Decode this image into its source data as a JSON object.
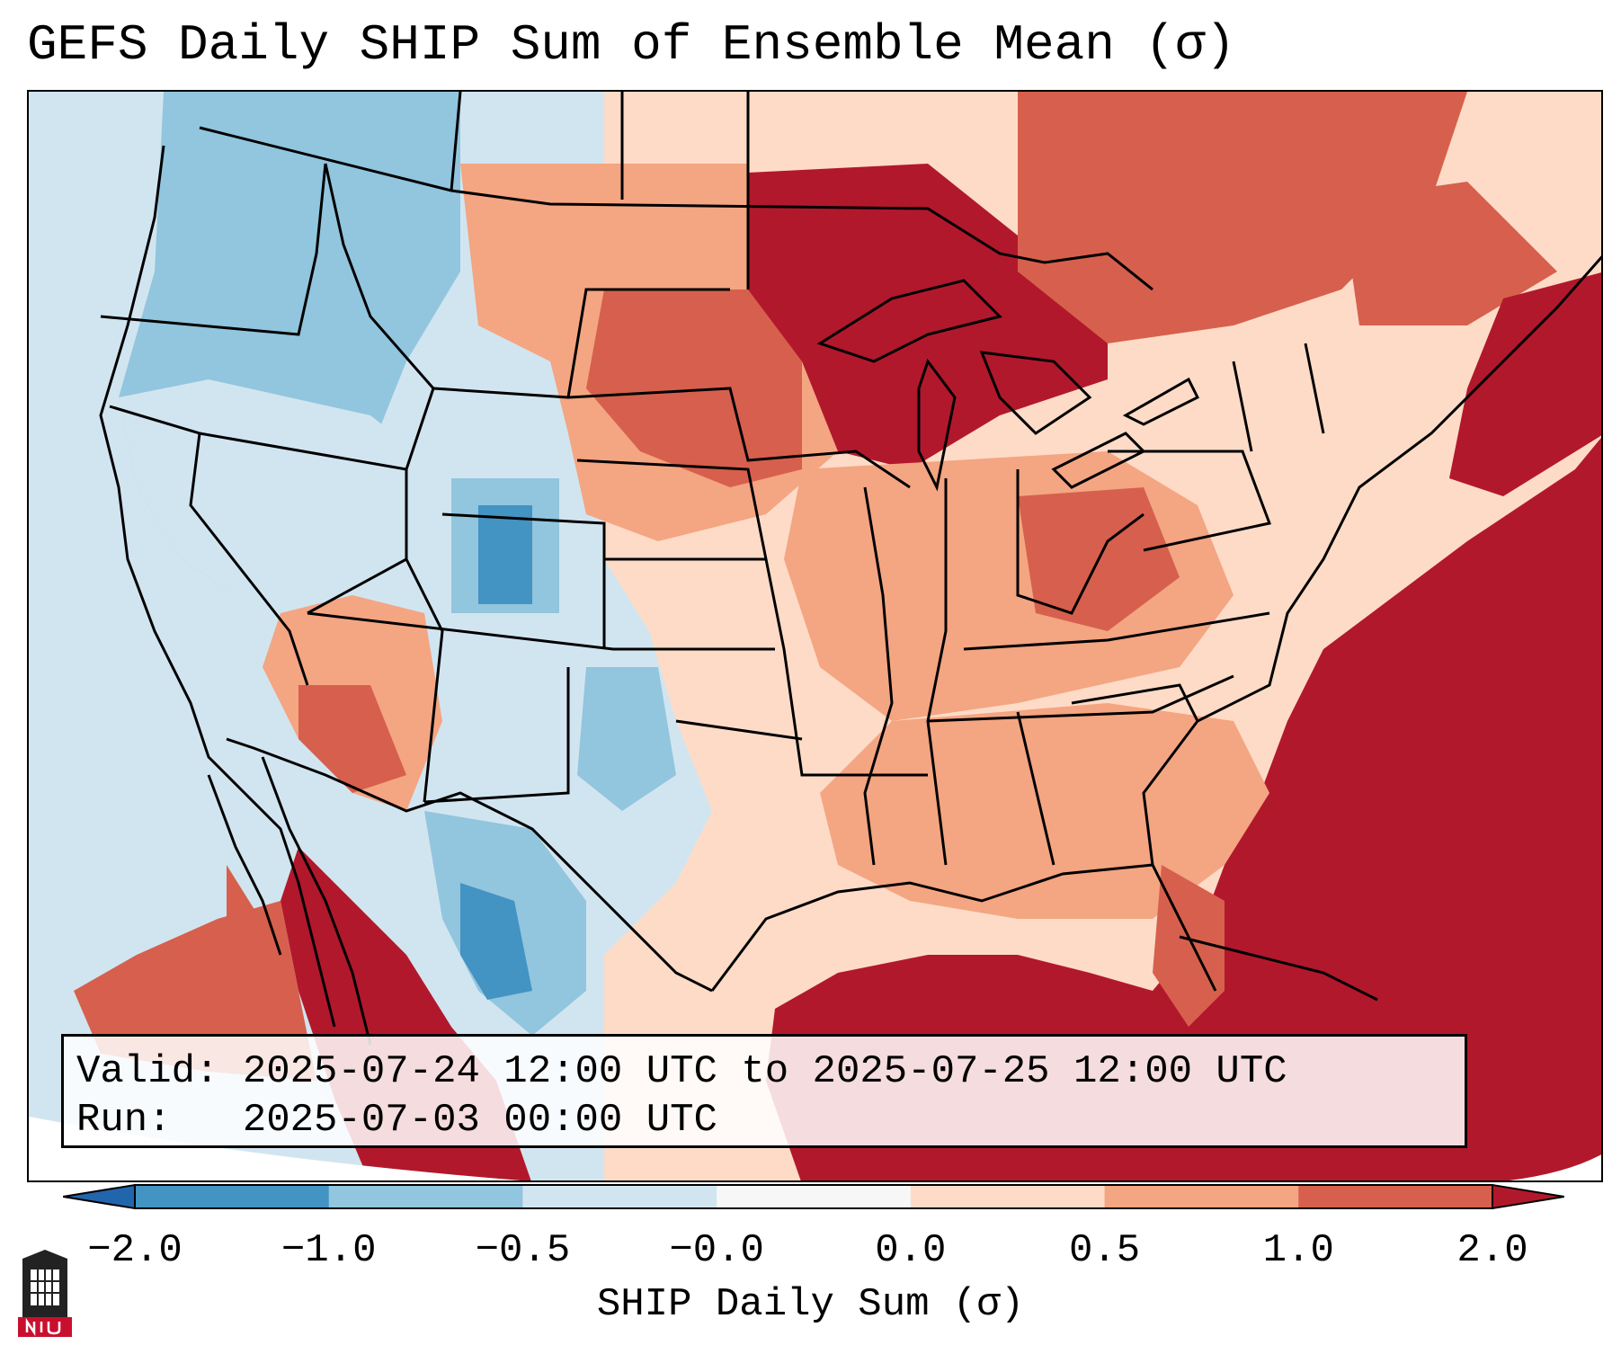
{
  "title": "GEFS Daily SHIP Sum of Ensemble Mean (σ)",
  "info": {
    "valid_label": "Valid:",
    "valid_value": "2025-07-24 12:00 UTC to 2025-07-25 12:00 UTC",
    "run_label": "Run:",
    "run_value": "2025-07-03 00:00 UTC"
  },
  "colorbar": {
    "label": "SHIP Daily Sum (σ)",
    "ticks": [
      "−2.0",
      "−1.0",
      "−0.5",
      "−0.0",
      "0.0",
      "0.5",
      "1.0",
      "2.0"
    ],
    "colors": [
      "#4393c3",
      "#92c5de",
      "#d1e5f0",
      "#f7f7f7",
      "#fddbc7",
      "#f4a582",
      "#d6604d",
      "#b2182b"
    ],
    "extend_low_color": "#2166ac",
    "extend_high_color": "#b2182b"
  },
  "map_colors": {
    "ocean_pacific": "#d1e5f0",
    "ocean_atlantic_gulf": "#b2182b",
    "boundary": "#000000"
  },
  "logo": {
    "text": "NIU",
    "color": "#c8102e"
  }
}
